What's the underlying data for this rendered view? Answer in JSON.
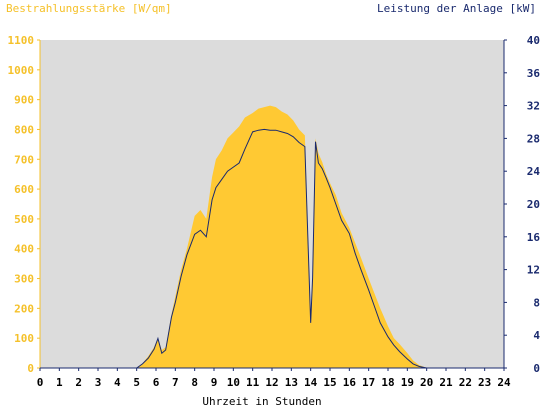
{
  "chart_data": {
    "type": "area",
    "left_axis_title": "Bestrahlungsstärke [W/qm]",
    "right_axis_title": "Leistung der Anlage [kW]",
    "xlabel": "Uhrzeit in Stunden",
    "xlim": [
      0,
      24
    ],
    "ylim_left": [
      0,
      1100
    ],
    "ylim_right": [
      0,
      40
    ],
    "x_ticks": [
      "0",
      "1",
      "2",
      "3",
      "4",
      "5",
      "6",
      "7",
      "8",
      "9",
      "10",
      "11",
      "12",
      "13",
      "14",
      "15",
      "16",
      "17",
      "18",
      "19",
      "20",
      "21",
      "22",
      "23",
      "24"
    ],
    "y_left_ticks": [
      "0",
      "100",
      "200",
      "300",
      "400",
      "500",
      "600",
      "700",
      "800",
      "900",
      "1000",
      "1100"
    ],
    "y_right_ticks": [
      "0",
      "4",
      "8",
      "12",
      "16",
      "20",
      "24",
      "28",
      "32",
      "36",
      "40"
    ],
    "grid": false,
    "colors": {
      "plot_background": "#dcdcdc",
      "irradiance_fill": "#ffc933",
      "power_line": "#1a2a6e",
      "left_axis": "#f5c12a",
      "right_axis": "#1a2a6e"
    },
    "series": [
      {
        "name": "Bestrahlungsstärke [W/qm]",
        "axis": "left",
        "style": "area",
        "x": [
          0,
          5,
          5.3,
          5.6,
          5.9,
          6.1,
          6.3,
          6.5,
          6.8,
          7.0,
          7.3,
          7.6,
          8.0,
          8.3,
          8.6,
          8.9,
          9.1,
          9.4,
          9.7,
          10.0,
          10.3,
          10.6,
          11.0,
          11.3,
          11.6,
          11.9,
          12.2,
          12.5,
          12.8,
          13.1,
          13.4,
          13.7,
          14.0,
          14.1,
          14.25,
          14.4,
          14.6,
          14.8,
          15.0,
          15.3,
          15.6,
          16.0,
          16.3,
          16.6,
          17.0,
          17.3,
          17.6,
          18.0,
          18.3,
          18.6,
          19.0,
          19.3,
          19.6,
          19.9,
          20.0,
          24
        ],
        "y": [
          0,
          0,
          15,
          40,
          70,
          100,
          60,
          70,
          180,
          240,
          330,
          400,
          510,
          530,
          500,
          640,
          700,
          730,
          770,
          790,
          810,
          840,
          855,
          870,
          875,
          880,
          875,
          860,
          850,
          830,
          800,
          780,
          150,
          300,
          770,
          720,
          690,
          650,
          620,
          580,
          520,
          470,
          420,
          370,
          300,
          250,
          200,
          140,
          100,
          80,
          50,
          25,
          10,
          3,
          0,
          0
        ]
      },
      {
        "name": "Leistung der Anlage [kW]",
        "axis": "right",
        "style": "line",
        "x": [
          0,
          5,
          5.3,
          5.6,
          5.9,
          6.1,
          6.3,
          6.5,
          6.8,
          7.0,
          7.3,
          7.6,
          8.0,
          8.3,
          8.6,
          8.9,
          9.1,
          9.4,
          9.7,
          10.0,
          10.3,
          10.6,
          11.0,
          11.3,
          11.6,
          11.9,
          12.2,
          12.5,
          12.8,
          13.1,
          13.4,
          13.7,
          14.0,
          14.1,
          14.25,
          14.4,
          14.6,
          14.8,
          15.0,
          15.3,
          15.6,
          16.0,
          16.3,
          16.6,
          17.0,
          17.3,
          17.6,
          18.0,
          18.3,
          18.6,
          19.0,
          19.3,
          19.6,
          19.9,
          20.0,
          24
        ],
        "y": [
          0,
          0,
          0.5,
          1.2,
          2.3,
          3.6,
          1.8,
          2.2,
          6.2,
          8.0,
          11.2,
          13.8,
          16.3,
          16.8,
          16.0,
          20.5,
          22.0,
          23.0,
          24.0,
          24.5,
          25.0,
          26.7,
          28.8,
          29.0,
          29.1,
          29.0,
          29.0,
          28.8,
          28.6,
          28.2,
          27.5,
          27.0,
          5.5,
          11.0,
          27.6,
          25.0,
          24.3,
          23.2,
          22.0,
          20.0,
          18.0,
          16.4,
          14.0,
          12.0,
          9.5,
          7.5,
          5.5,
          3.8,
          2.8,
          2.0,
          1.1,
          0.5,
          0.2,
          0.05,
          0,
          0
        ]
      }
    ]
  }
}
